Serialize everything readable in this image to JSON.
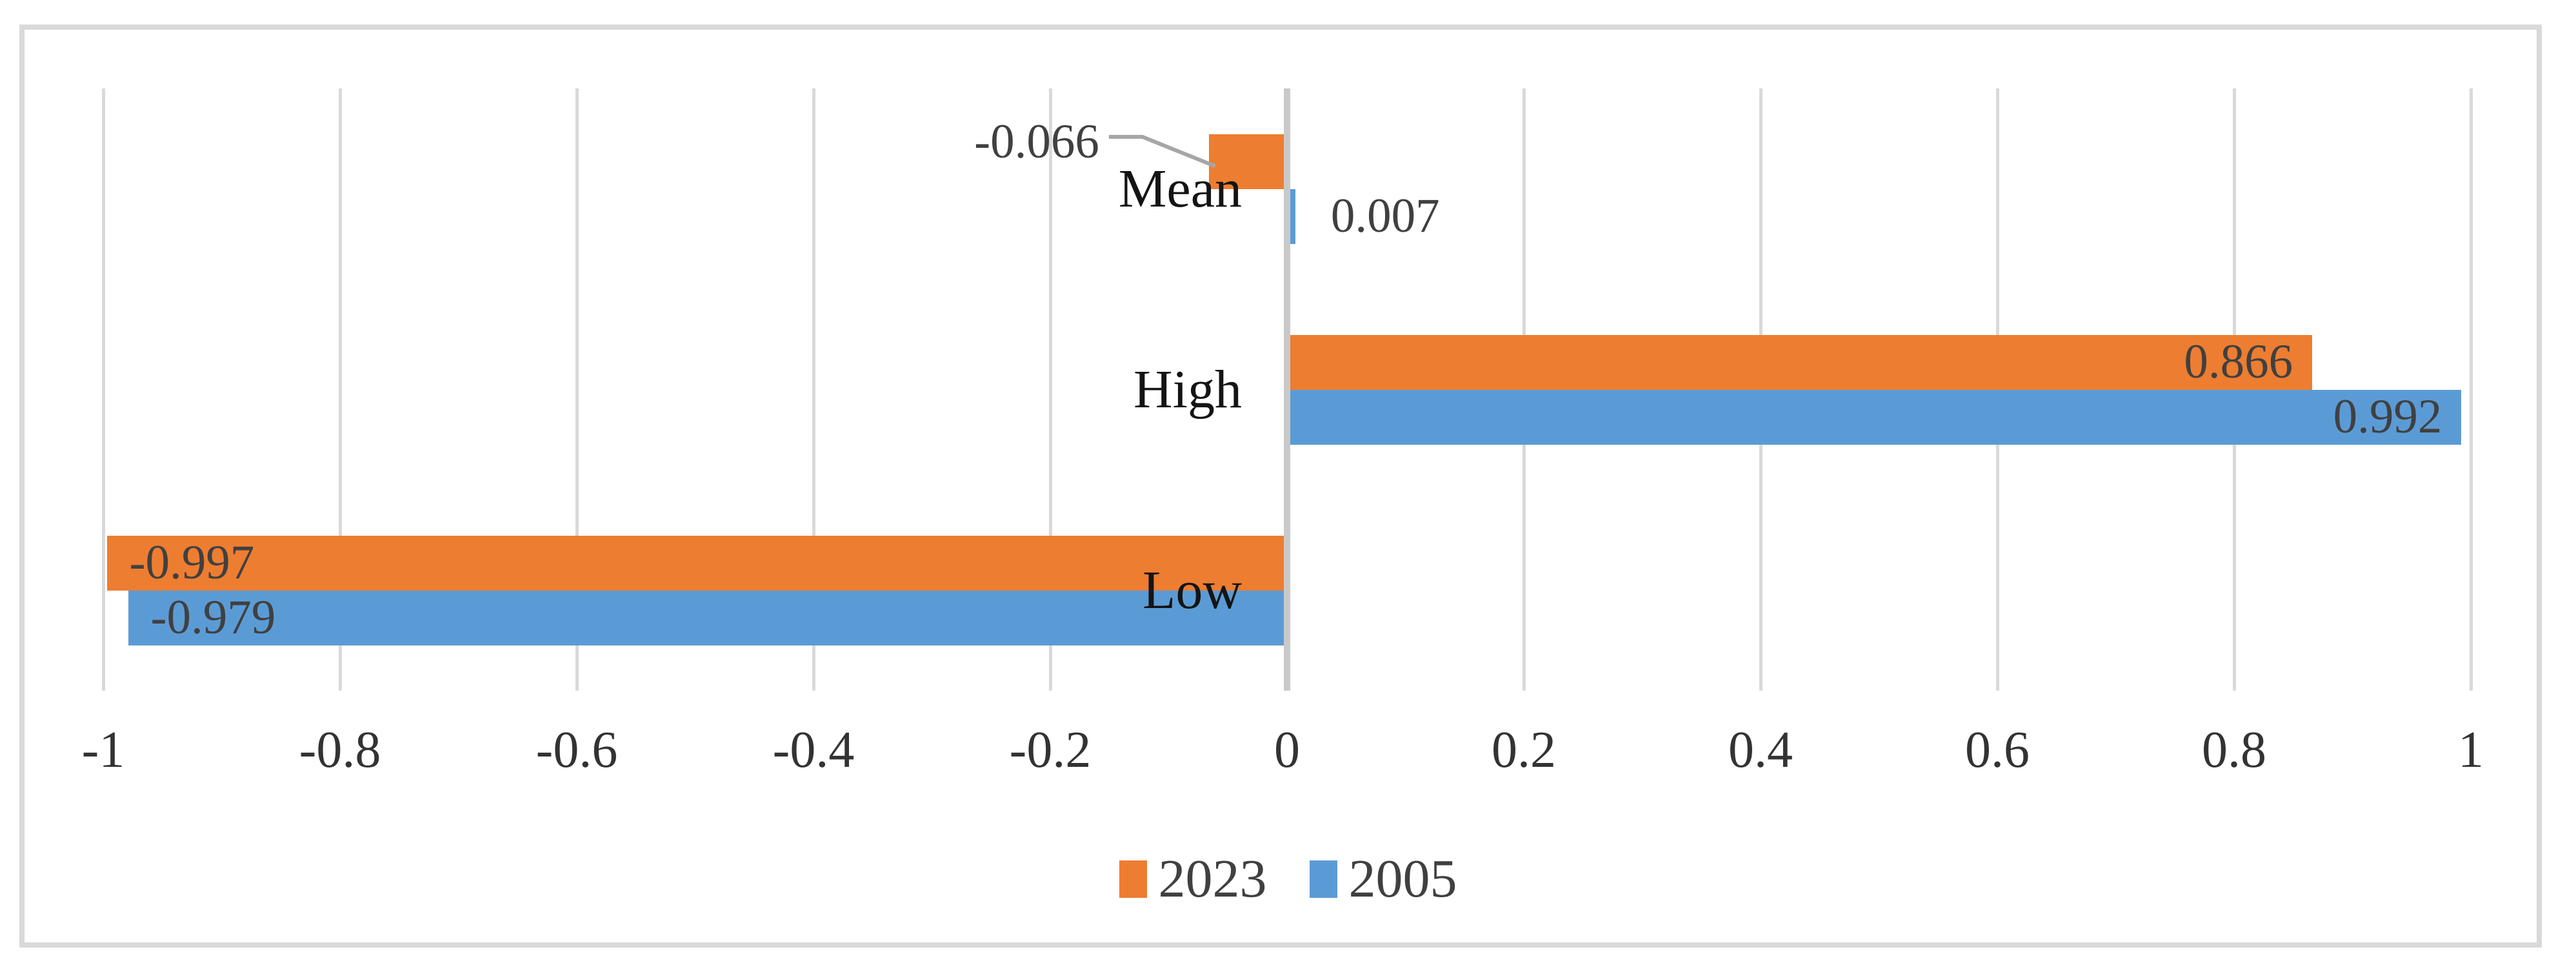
{
  "chart_data": {
    "type": "bar",
    "orientation": "horizontal",
    "title": "",
    "categories": [
      "Mean",
      "High",
      "Low"
    ],
    "series": [
      {
        "name": "2023",
        "color": "#ED7D31",
        "values": [
          -0.066,
          0.866,
          -0.997
        ],
        "data_labels": [
          "-0.066",
          "0.866",
          "-0.997"
        ]
      },
      {
        "name": "2005",
        "color": "#5B9BD5",
        "values": [
          0.007,
          0.992,
          -0.979
        ],
        "data_labels": [
          "0.007",
          "0.992",
          "-0.979"
        ]
      }
    ],
    "x_axis": {
      "min": -1,
      "max": 1,
      "tick_step": 0.2,
      "tick_labels": [
        "-1",
        "-0.8",
        "-0.6",
        "-0.4",
        "-0.2",
        "0",
        "0.2",
        "0.4",
        "0.6",
        "0.8",
        "1"
      ]
    },
    "legend": {
      "position": "bottom",
      "entries": [
        "2023",
        "2005"
      ]
    },
    "grid": {
      "vertical": true,
      "horizontal": false
    },
    "styles": {
      "gridline_color": "#D9D9D9",
      "axis_line_color": "#C9C9C9",
      "frame_border_color": "#D9D9D9",
      "data_label_color": "#404040",
      "category_label_color": "#141414",
      "tick_label_color": "#333333",
      "leader_line_color": "#A6A6A6",
      "background": "#FFFFFF"
    }
  }
}
